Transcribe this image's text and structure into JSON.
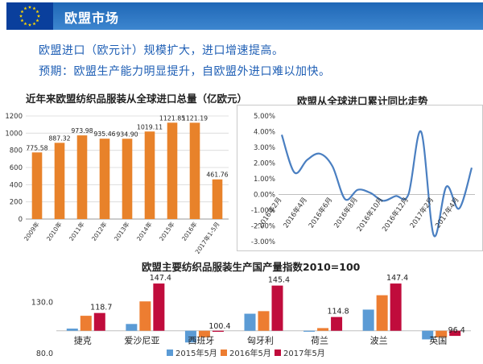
{
  "header": {
    "title": "欧盟市场",
    "flag_color": "#0a3f9c",
    "band_color": "#2a76c4",
    "icon": "eu-flag-icon"
  },
  "bullets": [
    "欧盟进口（欧元计）规模扩大，进口增速提高。",
    "预期：欧盟生产能力明显提升，自欧盟外进口难以加快。"
  ],
  "chart_data": [
    {
      "type": "bar",
      "title": "近年来欧盟纺织品服装从全球进口总量（亿欧元）",
      "categories": [
        "2009年",
        "2010年",
        "2011年",
        "2012年",
        "2013年",
        "2014年",
        "2015年",
        "2016年",
        "2017年1-5月"
      ],
      "values": [
        775.58,
        887.32,
        973.98,
        935.46,
        934.9,
        1019.11,
        1121.85,
        1121.19,
        461.76
      ],
      "data_labels": [
        "775.58",
        "887.32",
        "973.98",
        "935.46",
        "934.90",
        "1019.11",
        "1121.85",
        "1121.19",
        "461.76"
      ],
      "y_ticks": [
        "0",
        "200",
        "400",
        "600",
        "800",
        "1000",
        "1200"
      ],
      "ylim": [
        0,
        1200
      ],
      "color": "#e8822a",
      "grid": true
    },
    {
      "type": "line",
      "title": "欧盟从全球进口累计同比走势",
      "x_labels": [
        "2016年2月",
        "2016年4月",
        "2016年6月",
        "2016年8月",
        "2016年10月",
        "2016年12月",
        "2017年2月",
        "2017年4月"
      ],
      "x": [
        "2016-02",
        "2016-03",
        "2016-04",
        "2016-05",
        "2016-06",
        "2016-07",
        "2016-08",
        "2016-09",
        "2016-10",
        "2016-11",
        "2016-12",
        "2017-01",
        "2017-02",
        "2017-03",
        "2017-04",
        "2017-05"
      ],
      "values": [
        3.8,
        1.4,
        2.2,
        2.6,
        1.8,
        -0.3,
        0.3,
        0.1,
        -0.4,
        -0.1,
        0.0,
        4.0,
        -2.6,
        0.5,
        -0.9,
        1.7
      ],
      "y_ticks": [
        "5.00%",
        "4.00%",
        "3.00%",
        "2.00%",
        "1.00%",
        "0.00%",
        "-1.00%",
        "-2.00%",
        "-3.00%"
      ],
      "ylim": [
        -3,
        5
      ],
      "color": "#4a7fc1",
      "grid": false
    },
    {
      "type": "bar",
      "title": "欧盟主要纺织品服装生产国产量指数2010=100",
      "categories": [
        "捷克",
        "爱沙尼亚",
        "西班牙",
        "匈牙利",
        "荷兰",
        "波兰",
        "英国"
      ],
      "series": [
        {
          "name": "2015年5月",
          "color": "#5b9bd5",
          "values": [
            103.5,
            108.0,
            90.0,
            118.0,
            100.8,
            122.0,
            93.0
          ]
        },
        {
          "name": "2016年5月",
          "color": "#ed7d31",
          "values": [
            116.0,
            130.0,
            95.0,
            120.5,
            104.0,
            136.0,
            95.0
          ]
        },
        {
          "name": "2017年5月",
          "color": "#c00c3c",
          "values": [
            118.7,
            147.4,
            100.4,
            145.4,
            114.8,
            147.4,
            96.4
          ]
        }
      ],
      "data_labels": [
        "118.7",
        "147.4",
        "100.4",
        "145.4",
        "114.8",
        "147.4",
        "96.4"
      ],
      "y_ticks": [
        "130.0",
        "80.0"
      ],
      "ylim": [
        80,
        160
      ],
      "baseline": 101.4
    }
  ]
}
